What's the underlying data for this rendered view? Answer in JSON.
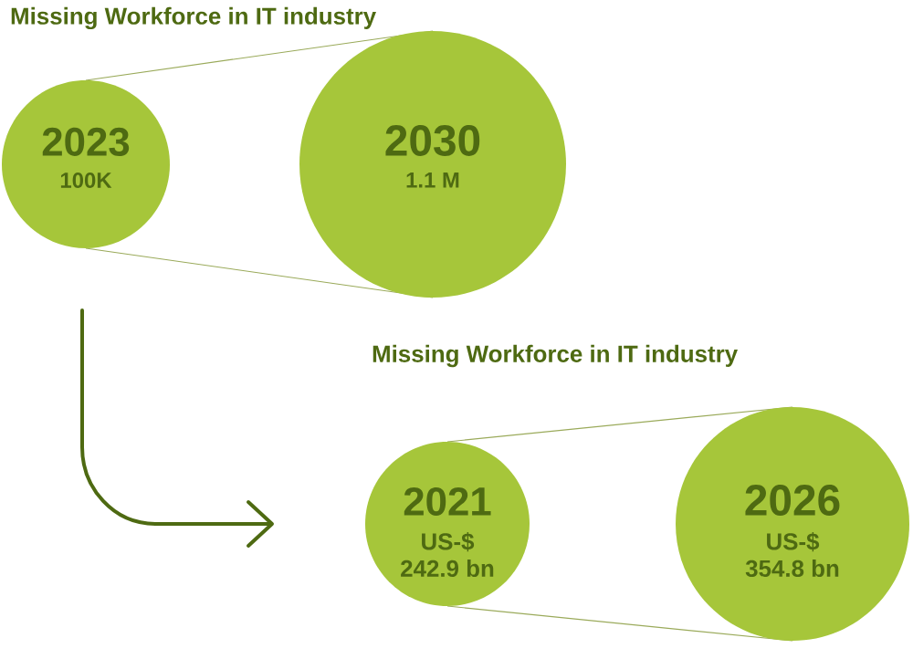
{
  "chart_data": [
    {
      "type": "other",
      "title": "Missing Workforce in IT industry",
      "categories": [
        "2023",
        "2030"
      ],
      "values": [
        100000,
        1100000
      ],
      "value_labels": [
        "100K",
        "1.1 M"
      ],
      "color": "#a6c63a"
    },
    {
      "type": "other",
      "title": "Missing Workforce in IT industry",
      "categories": [
        "2021",
        "2026"
      ],
      "values": [
        242.9,
        354.8
      ],
      "value_labels": [
        "242.9 bn",
        "354.8 bn"
      ],
      "annotations": [
        "US-$",
        "US-$"
      ],
      "color": "#a6c63a"
    }
  ]
}
